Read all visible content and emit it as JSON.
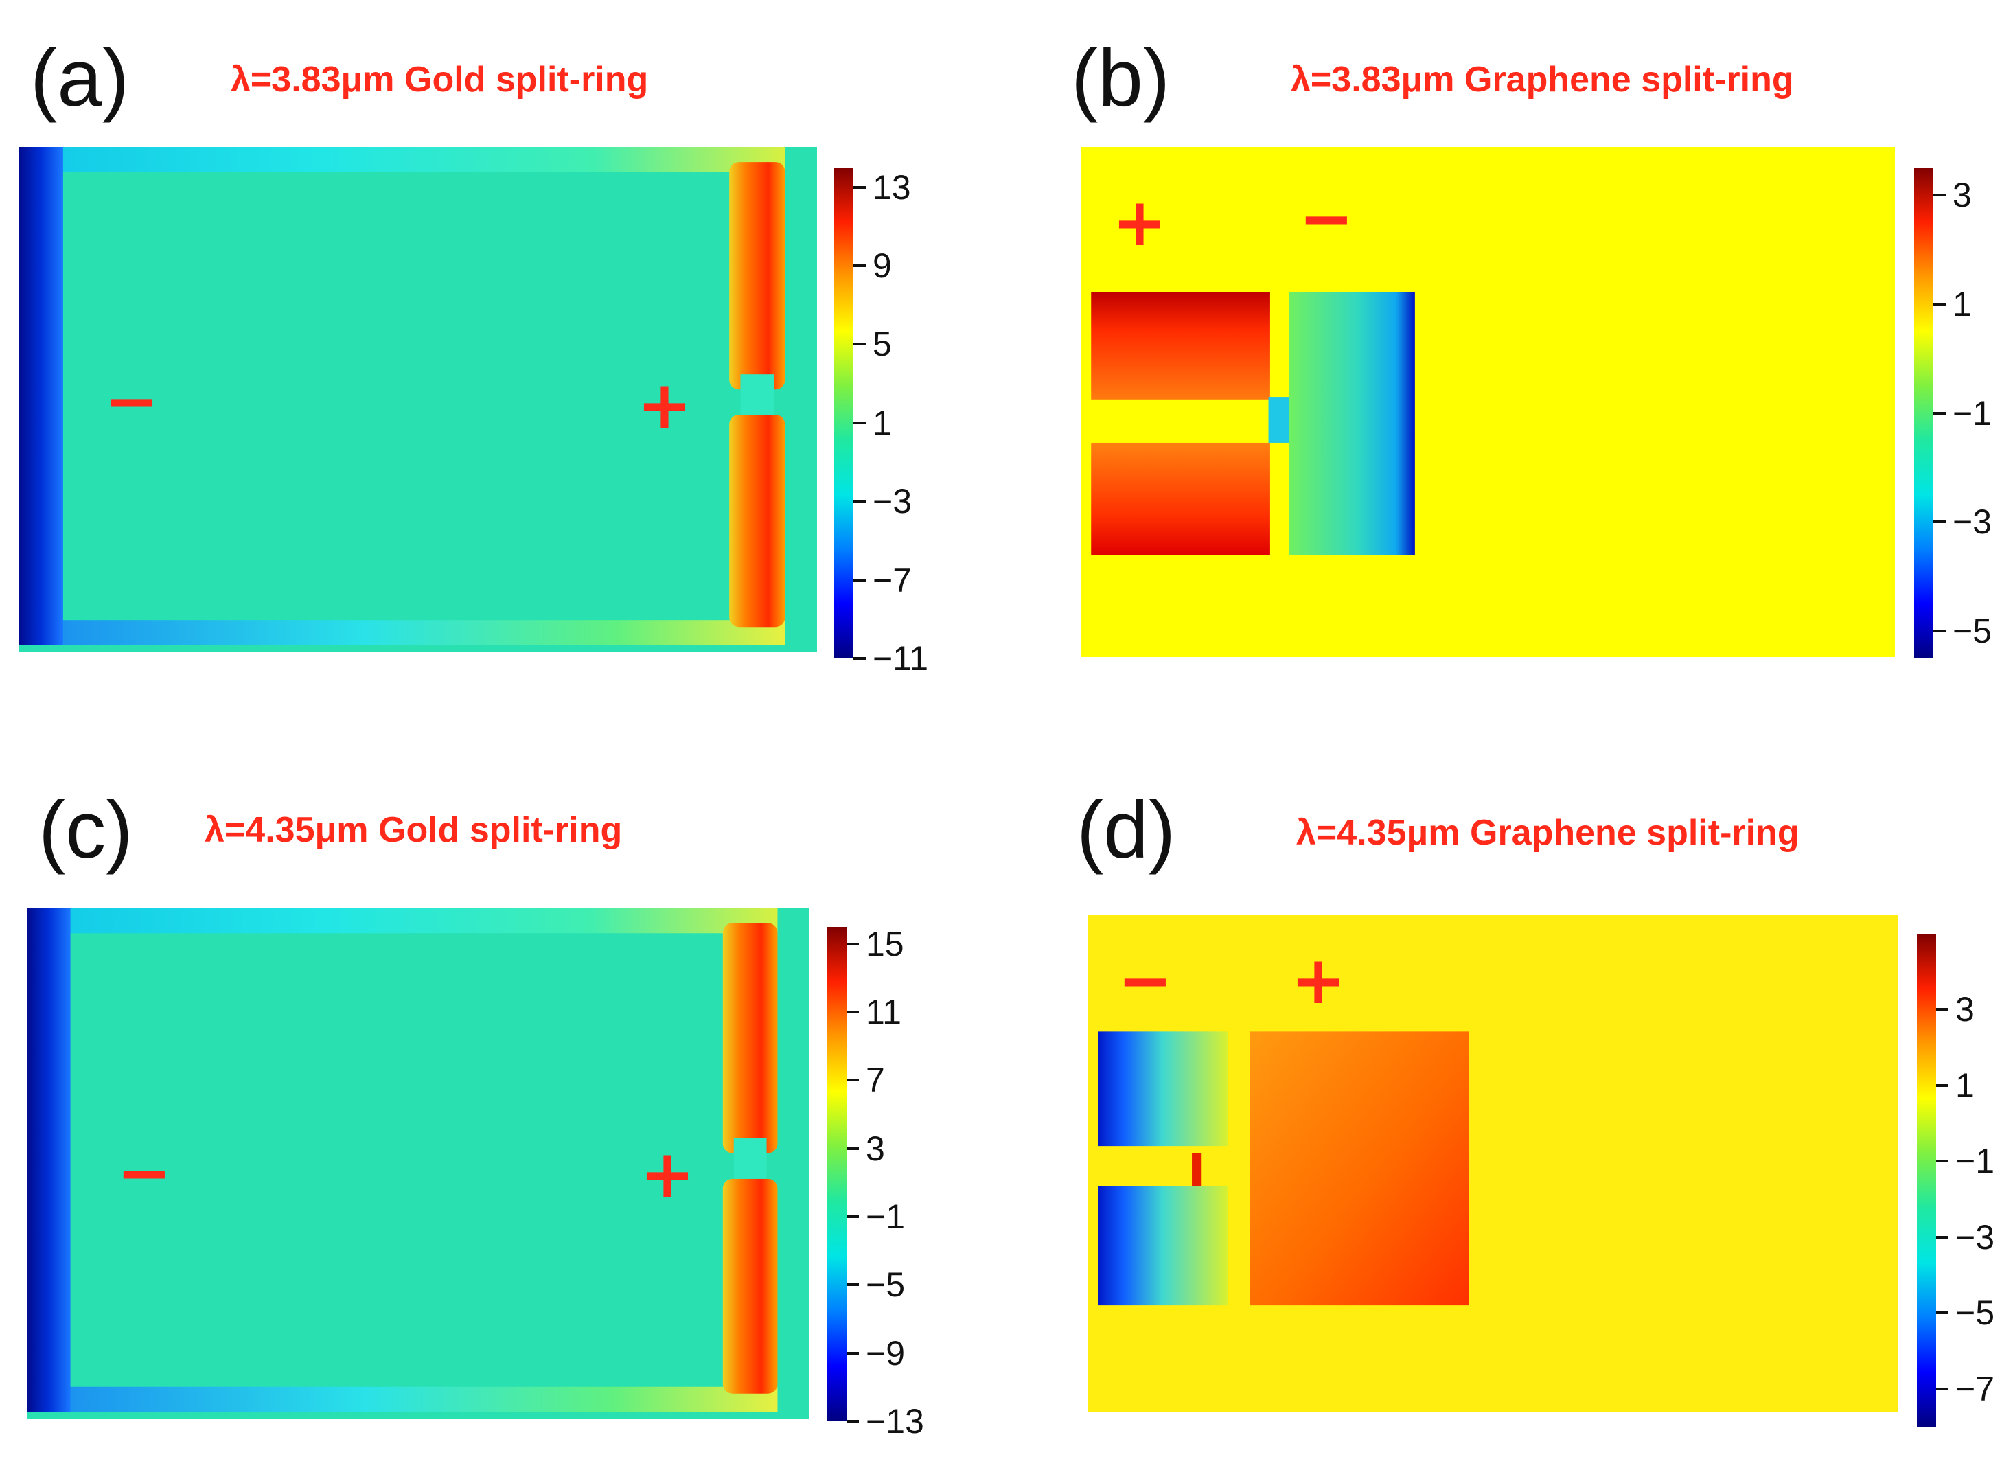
{
  "colors": {
    "accent": "#ff2a1a",
    "text": "#111111",
    "colormap": [
      "#000080",
      "#0000ff",
      "#0080ff",
      "#00e5e5",
      "#20e8a0",
      "#80f040",
      "#ffff00",
      "#ff9900",
      "#ff2000",
      "#800000"
    ]
  },
  "chart_data": [
    {
      "type": "heatmap",
      "panel_label": "(a)",
      "title": "λ=3.83μm Gold split-ring",
      "structure": "gold",
      "colorbar": {
        "ticks": [
          "13",
          "9",
          "5",
          "1",
          "−3",
          "−7",
          "−11"
        ],
        "values": [
          13,
          9,
          5,
          1,
          -3,
          -7,
          -11
        ],
        "range": [
          -11,
          14
        ]
      },
      "annotations": [
        {
          "text": "−"
        },
        {
          "text": "+"
        }
      ]
    },
    {
      "type": "heatmap",
      "panel_label": "(b)",
      "title": "λ=3.83μm Graphene split-ring",
      "structure": "graphene-b",
      "colorbar": {
        "ticks": [
          "3",
          "1",
          "−1",
          "−3",
          "−5"
        ],
        "values": [
          3,
          1,
          -1,
          -3,
          -5
        ],
        "range": [
          -5.5,
          3.5
        ]
      },
      "annotations": [
        {
          "text": "+"
        },
        {
          "text": "−"
        }
      ]
    },
    {
      "type": "heatmap",
      "panel_label": "(c)",
      "title": "λ=4.35μm Gold split-ring",
      "structure": "gold",
      "colorbar": {
        "ticks": [
          "15",
          "11",
          "7",
          "3",
          "−1",
          "−5",
          "−9",
          "−13"
        ],
        "values": [
          15,
          11,
          7,
          3,
          -1,
          -5,
          -9,
          -13
        ],
        "range": [
          -13,
          16
        ]
      },
      "annotations": [
        {
          "text": "−"
        },
        {
          "text": "+"
        }
      ]
    },
    {
      "type": "heatmap",
      "panel_label": "(d)",
      "title": "λ=4.35μm Graphene split-ring",
      "structure": "graphene-d",
      "colorbar": {
        "ticks": [
          "3",
          "1",
          "−1",
          "−3",
          "−5",
          "−7"
        ],
        "values": [
          3,
          1,
          -1,
          -3,
          -5,
          -7
        ],
        "range": [
          -8,
          5
        ]
      },
      "annotations": [
        {
          "text": "−"
        },
        {
          "text": "+"
        }
      ]
    }
  ]
}
